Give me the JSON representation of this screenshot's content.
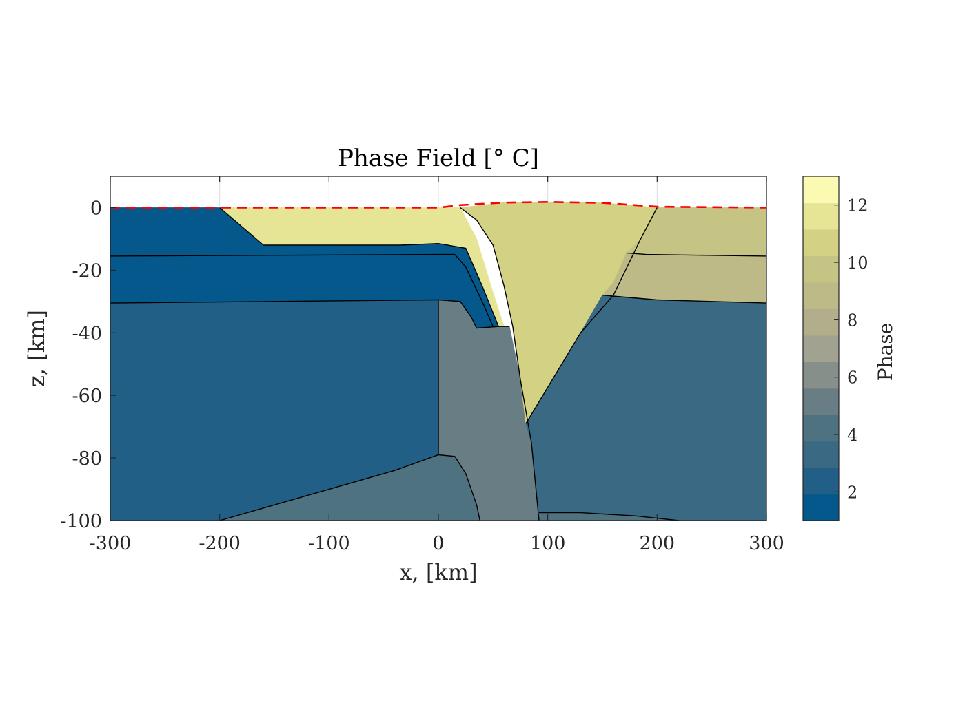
{
  "chart_data": {
    "type": "heatmap",
    "title": "Phase Field [° C]",
    "xlabel": "x, [km]",
    "ylabel": "z, [km]",
    "xlim": [
      -300,
      300
    ],
    "ylim": [
      -100,
      10
    ],
    "xticks": [
      -300,
      -200,
      -100,
      0,
      100,
      200,
      300
    ],
    "yticks": [
      0,
      -20,
      -40,
      -60,
      -80,
      -100
    ],
    "grid": "on",
    "colorbar": {
      "label": "Phase",
      "range": [
        1,
        13
      ],
      "ticks": [
        2,
        4,
        6,
        8,
        10,
        12
      ],
      "colors": [
        "#04588c",
        "#225f86",
        "#3a6984",
        "#4f7280",
        "#697d84",
        "#878f8b",
        "#a1a390",
        "#b2ae8c",
        "#bdba88",
        "#c6c484",
        "#d3d184",
        "#e6e596",
        "#fafab3"
      ]
    },
    "regions": [
      {
        "phase": 1,
        "polygon": [
          [
            -300,
            0
          ],
          [
            -200,
            0
          ],
          [
            -160,
            -12
          ],
          [
            -35,
            -12
          ],
          [
            0,
            -11.5
          ],
          [
            25,
            -13
          ],
          [
            40,
            -25
          ],
          [
            55,
            -38
          ],
          [
            50,
            -38
          ],
          [
            40,
            -30
          ],
          [
            25,
            -19
          ],
          [
            15,
            -15
          ],
          [
            0,
            -15
          ],
          [
            -300,
            -15.5
          ]
        ]
      },
      {
        "phase": 1,
        "polygon": [
          [
            -300,
            -15.5
          ],
          [
            0,
            -15
          ],
          [
            15,
            -15
          ],
          [
            25,
            -19
          ],
          [
            40,
            -30
          ],
          [
            50,
            -38
          ],
          [
            35,
            -38.5
          ],
          [
            30,
            -35
          ],
          [
            20,
            -30
          ],
          [
            0,
            -29.5
          ],
          [
            -35,
            -30
          ],
          [
            -300,
            -30.5
          ]
        ]
      },
      {
        "phase": 2,
        "polygon": [
          [
            -300,
            -30.5
          ],
          [
            0,
            -29.5
          ],
          [
            0,
            -79
          ],
          [
            -40,
            -84
          ],
          [
            -200,
            -100
          ],
          [
            -300,
            -100
          ]
        ]
      },
      {
        "phase": 4,
        "polygon": [
          [
            -200,
            -100
          ],
          [
            -40,
            -84
          ],
          [
            0,
            -79
          ],
          [
            15,
            -79.5
          ],
          [
            25,
            -85
          ],
          [
            35,
            -95
          ],
          [
            38,
            -100
          ]
        ]
      },
      {
        "phase": 5,
        "polygon": [
          [
            0,
            -29.5
          ],
          [
            20,
            -30
          ],
          [
            30,
            -35
          ],
          [
            35,
            -38.5
          ],
          [
            55,
            -38
          ],
          [
            65,
            -38
          ],
          [
            75,
            -55
          ],
          [
            85,
            -75
          ],
          [
            92,
            -100
          ],
          [
            38,
            -100
          ],
          [
            35,
            -95
          ],
          [
            25,
            -85
          ],
          [
            15,
            -79.5
          ],
          [
            0,
            -79
          ]
        ]
      },
      {
        "phase": 12,
        "polygon": [
          [
            -200,
            0
          ],
          [
            -100,
            0
          ],
          [
            -30,
            0
          ],
          [
            0,
            0
          ],
          [
            20,
            0
          ],
          [
            35,
            -10
          ],
          [
            48,
            -25
          ],
          [
            60,
            -38
          ],
          [
            55,
            -38
          ],
          [
            40,
            -25
          ],
          [
            25,
            -13
          ],
          [
            0,
            -11.5
          ],
          [
            -35,
            -12
          ],
          [
            -160,
            -12
          ]
        ]
      },
      {
        "phase": 11,
        "polygon": [
          [
            20,
            0
          ],
          [
            60,
            1.6
          ],
          [
            100,
            1.8
          ],
          [
            150,
            1.5
          ],
          [
            200,
            0
          ],
          [
            185,
            -10
          ],
          [
            160,
            -28
          ],
          [
            130,
            -40
          ],
          [
            80,
            -69
          ],
          [
            75,
            -55
          ],
          [
            68,
            -38
          ],
          [
            60,
            -25
          ],
          [
            50,
            -12
          ],
          [
            35,
            -4
          ]
        ]
      },
      {
        "phase": 3,
        "polygon": [
          [
            80,
            -69
          ],
          [
            130,
            -40
          ],
          [
            150,
            -28
          ],
          [
            200,
            -29.5
          ],
          [
            300,
            -30.5
          ],
          [
            300,
            -100
          ],
          [
            220,
            -100
          ],
          [
            180,
            -98.5
          ],
          [
            130,
            -97.5
          ],
          [
            92,
            -97.5
          ],
          [
            85,
            -75
          ]
        ]
      },
      {
        "phase": 9,
        "polygon": [
          [
            150,
            -28
          ],
          [
            160,
            -24
          ],
          [
            172,
            -14.5
          ],
          [
            190,
            -15
          ],
          [
            300,
            -15.5
          ],
          [
            300,
            -30.5
          ],
          [
            200,
            -29.5
          ]
        ]
      },
      {
        "phase": 10,
        "polygon": [
          [
            200,
            0
          ],
          [
            300,
            0
          ],
          [
            300,
            -15.5
          ],
          [
            190,
            -15
          ],
          [
            172,
            -14.5
          ],
          [
            185,
            -10
          ]
        ]
      },
      {
        "phase": 4,
        "polygon": [
          [
            92,
            -97.5
          ],
          [
            130,
            -97.5
          ],
          [
            180,
            -98.5
          ],
          [
            220,
            -100
          ],
          [
            92,
            -100
          ]
        ]
      }
    ],
    "boundaries": [
      {
        "points": [
          [
            -300,
            -15.5
          ],
          [
            0,
            -15
          ],
          [
            15,
            -15
          ],
          [
            25,
            -19
          ],
          [
            40,
            -30
          ],
          [
            50,
            -38
          ]
        ]
      },
      {
        "points": [
          [
            -300,
            -30.5
          ],
          [
            0,
            -29.5
          ],
          [
            20,
            -30
          ],
          [
            30,
            -35
          ],
          [
            35,
            -38.5
          ],
          [
            55,
            -38
          ],
          [
            65,
            -38
          ]
        ]
      },
      {
        "points": [
          [
            -200,
            0
          ],
          [
            -160,
            -12
          ],
          [
            -35,
            -12
          ],
          [
            0,
            -11.5
          ],
          [
            25,
            -13
          ],
          [
            40,
            -25
          ],
          [
            55,
            -38
          ]
        ]
      },
      {
        "points": [
          [
            20,
            0
          ],
          [
            35,
            -4
          ],
          [
            50,
            -12
          ],
          [
            60,
            -25
          ],
          [
            68,
            -38
          ],
          [
            75,
            -55
          ],
          [
            85,
            -75
          ],
          [
            92,
            -100
          ]
        ]
      },
      {
        "points": [
          [
            0,
            -29.5
          ],
          [
            0,
            -79
          ]
        ]
      },
      {
        "points": [
          [
            -200,
            -100
          ],
          [
            -40,
            -84
          ],
          [
            0,
            -79
          ],
          [
            15,
            -79.5
          ],
          [
            25,
            -85
          ],
          [
            35,
            -95
          ],
          [
            38,
            -100
          ]
        ]
      },
      {
        "points": [
          [
            200,
            0
          ],
          [
            185,
            -10
          ],
          [
            160,
            -28
          ],
          [
            130,
            -40
          ],
          [
            80,
            -69
          ]
        ]
      },
      {
        "points": [
          [
            172,
            -14.5
          ],
          [
            190,
            -15
          ],
          [
            300,
            -15.5
          ]
        ]
      },
      {
        "points": [
          [
            150,
            -28
          ],
          [
            200,
            -29.5
          ],
          [
            300,
            -30.5
          ]
        ]
      },
      {
        "points": [
          [
            92,
            -97.5
          ],
          [
            130,
            -97.5
          ],
          [
            180,
            -98.5
          ],
          [
            220,
            -100
          ]
        ]
      }
    ],
    "surface": {
      "color": "#ff0000",
      "points": [
        [
          -300,
          0
        ],
        [
          -100,
          0
        ],
        [
          0,
          0
        ],
        [
          20,
          0.8
        ],
        [
          60,
          1.6
        ],
        [
          100,
          1.8
        ],
        [
          150,
          1.5
        ],
        [
          200,
          0.3
        ],
        [
          300,
          0
        ]
      ]
    }
  }
}
